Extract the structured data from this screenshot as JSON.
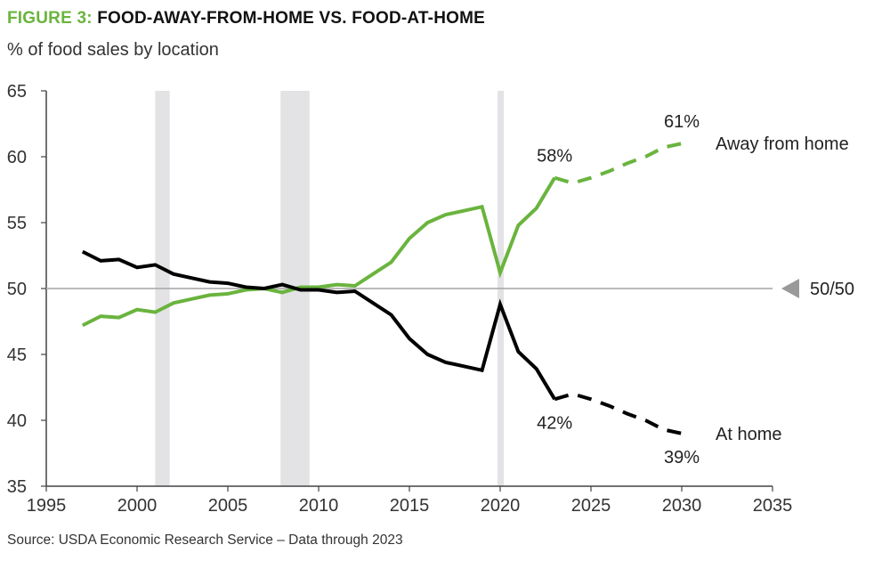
{
  "header": {
    "figure_label": "FIGURE 3:",
    "title": "FOOD-AWAY-FROM-HOME VS. FOOD-AT-HOME",
    "subtitle": "% of food sales by location"
  },
  "footer": {
    "source": "Source: USDA Economic Research Service – Data through 2023"
  },
  "colors": {
    "away_from_home": "#6ab43e",
    "at_home": "#000000",
    "recession_band": "#e3e3e6",
    "reference_line": "#b0b0b0"
  },
  "chart_data": {
    "type": "line",
    "title": "FOOD-AWAY-FROM-HOME VS. FOOD-AT-HOME",
    "subtitle": "% of food sales by location",
    "xlim": [
      1995,
      2035
    ],
    "ylim": [
      35,
      65
    ],
    "x_ticks": [
      1995,
      2000,
      2005,
      2010,
      2015,
      2020,
      2025,
      2030,
      2035
    ],
    "y_ticks": [
      35,
      40,
      45,
      50,
      55,
      60,
      65
    ],
    "grid": false,
    "reference_line": {
      "y": 50,
      "label": "50/50"
    },
    "shaded_bands": [
      {
        "x0": 2001.0,
        "x1": 2001.8
      },
      {
        "x0": 2007.9,
        "x1": 2009.5
      },
      {
        "x0": 2019.85,
        "x1": 2020.2
      }
    ],
    "series": [
      {
        "name": "Away from home",
        "color": "#6ab43e",
        "actual": {
          "x": [
            1997,
            1998,
            1999,
            2000,
            2001,
            2002,
            2003,
            2004,
            2005,
            2006,
            2007,
            2008,
            2009,
            2010,
            2011,
            2012,
            2013,
            2014,
            2015,
            2016,
            2017,
            2018,
            2019,
            2020,
            2021,
            2022,
            2023
          ],
          "y": [
            47.2,
            47.9,
            47.8,
            48.4,
            48.2,
            48.9,
            49.2,
            49.5,
            49.6,
            49.9,
            50.0,
            49.7,
            50.1,
            50.1,
            50.3,
            50.2,
            51.1,
            52.0,
            53.8,
            55.0,
            55.6,
            55.9,
            56.2,
            51.2,
            54.8,
            56.1,
            58.4
          ]
        },
        "projected": {
          "x": [
            2023,
            2024,
            2025,
            2026,
            2027,
            2028,
            2029,
            2030
          ],
          "y": [
            58.4,
            58.0,
            58.4,
            58.9,
            59.5,
            60.0,
            60.7,
            61.0
          ]
        },
        "annotations": [
          {
            "x": 2023,
            "label": "58%"
          },
          {
            "x": 2030,
            "label": "61%"
          }
        ]
      },
      {
        "name": "At home",
        "color": "#000000",
        "actual": {
          "x": [
            1997,
            1998,
            1999,
            2000,
            2001,
            2002,
            2003,
            2004,
            2005,
            2006,
            2007,
            2008,
            2009,
            2010,
            2011,
            2012,
            2013,
            2014,
            2015,
            2016,
            2017,
            2018,
            2019,
            2020,
            2021,
            2022,
            2023
          ],
          "y": [
            52.8,
            52.1,
            52.2,
            51.6,
            51.8,
            51.1,
            50.8,
            50.5,
            50.4,
            50.1,
            50.0,
            50.3,
            49.9,
            49.9,
            49.7,
            49.8,
            48.9,
            48.0,
            46.2,
            45.0,
            44.4,
            44.1,
            43.8,
            48.8,
            45.2,
            43.9,
            41.6
          ]
        },
        "projected": {
          "x": [
            2023,
            2024,
            2025,
            2026,
            2027,
            2028,
            2029,
            2030
          ],
          "y": [
            41.6,
            42.0,
            41.6,
            41.1,
            40.5,
            40.0,
            39.3,
            39.0
          ]
        },
        "annotations": [
          {
            "x": 2023,
            "label": "42%"
          },
          {
            "x": 2030,
            "label": "39%"
          }
        ]
      }
    ]
  }
}
